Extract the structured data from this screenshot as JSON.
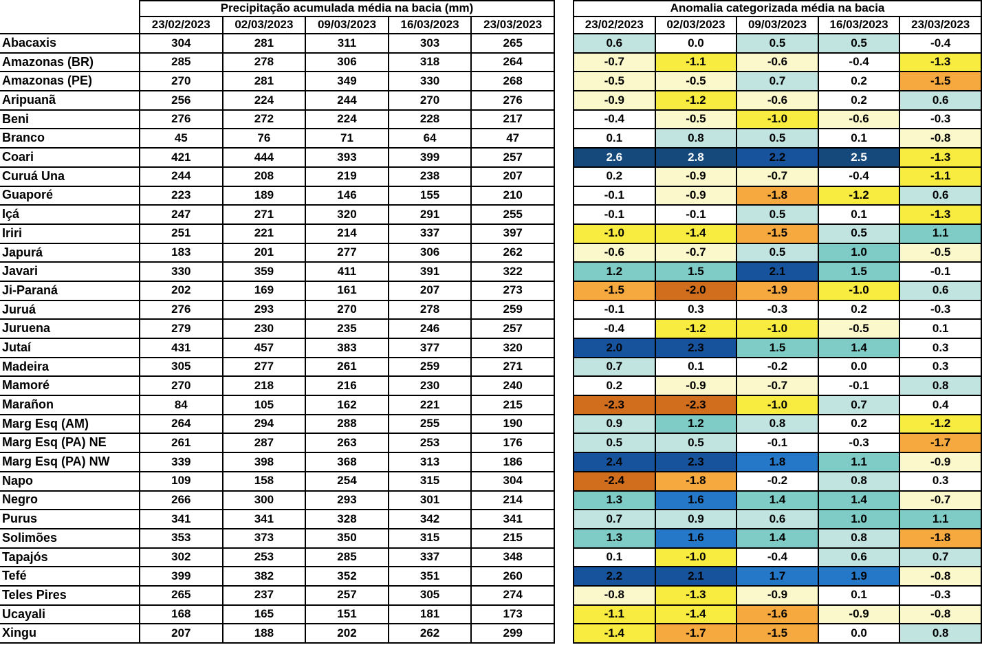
{
  "chart_data": [
    {
      "type": "table",
      "title": "Precipitação acumulada média na bacia (mm)",
      "columns": [
        "23/02/2023",
        "02/03/2023",
        "09/03/2023",
        "16/03/2023",
        "23/03/2023"
      ],
      "rows": [
        {
          "basin": "Abacaxis",
          "values": [
            304,
            281,
            311,
            303,
            265
          ]
        },
        {
          "basin": "Amazonas (BR)",
          "values": [
            285,
            278,
            306,
            318,
            264
          ]
        },
        {
          "basin": "Amazonas (PE)",
          "values": [
            270,
            281,
            349,
            330,
            268
          ]
        },
        {
          "basin": "Aripuanã",
          "values": [
            256,
            224,
            244,
            270,
            276
          ]
        },
        {
          "basin": "Beni",
          "values": [
            276,
            272,
            224,
            228,
            217
          ]
        },
        {
          "basin": "Branco",
          "values": [
            45,
            76,
            71,
            64,
            47
          ]
        },
        {
          "basin": "Coari",
          "values": [
            421,
            444,
            393,
            399,
            257
          ]
        },
        {
          "basin": "Curuá Una",
          "values": [
            244,
            208,
            219,
            238,
            207
          ]
        },
        {
          "basin": "Guaporé",
          "values": [
            223,
            189,
            146,
            155,
            210
          ]
        },
        {
          "basin": "Içá",
          "values": [
            247,
            271,
            320,
            291,
            255
          ]
        },
        {
          "basin": "Iriri",
          "values": [
            251,
            221,
            214,
            337,
            397
          ]
        },
        {
          "basin": "Japurá",
          "values": [
            183,
            201,
            277,
            306,
            262
          ]
        },
        {
          "basin": "Javari",
          "values": [
            330,
            359,
            411,
            391,
            322
          ]
        },
        {
          "basin": "Ji-Paraná",
          "values": [
            202,
            169,
            161,
            207,
            273
          ]
        },
        {
          "basin": "Juruá",
          "values": [
            276,
            293,
            270,
            278,
            259
          ]
        },
        {
          "basin": "Juruena",
          "values": [
            279,
            230,
            235,
            246,
            257
          ]
        },
        {
          "basin": "Jutaí",
          "values": [
            431,
            457,
            383,
            377,
            320
          ]
        },
        {
          "basin": "Madeira",
          "values": [
            305,
            277,
            261,
            259,
            271
          ]
        },
        {
          "basin": "Mamoré",
          "values": [
            270,
            218,
            216,
            230,
            240
          ]
        },
        {
          "basin": "Marañon",
          "values": [
            84,
            105,
            162,
            221,
            215
          ]
        },
        {
          "basin": "Marg Esq (AM)",
          "values": [
            264,
            294,
            288,
            255,
            190
          ]
        },
        {
          "basin": "Marg Esq (PA) NE",
          "values": [
            261,
            287,
            263,
            253,
            176
          ]
        },
        {
          "basin": "Marg Esq (PA) NW",
          "values": [
            339,
            398,
            368,
            313,
            186
          ]
        },
        {
          "basin": "Napo",
          "values": [
            109,
            158,
            254,
            315,
            304
          ]
        },
        {
          "basin": "Negro",
          "values": [
            266,
            300,
            293,
            301,
            214
          ]
        },
        {
          "basin": "Purus",
          "values": [
            341,
            341,
            328,
            342,
            341
          ]
        },
        {
          "basin": "Solimões",
          "values": [
            353,
            373,
            350,
            315,
            215
          ]
        },
        {
          "basin": "Tapajós",
          "values": [
            302,
            253,
            285,
            337,
            348
          ]
        },
        {
          "basin": "Tefé",
          "values": [
            399,
            382,
            352,
            351,
            260
          ]
        },
        {
          "basin": "Teles Pires",
          "values": [
            265,
            237,
            257,
            305,
            274
          ]
        },
        {
          "basin": "Ucayali",
          "values": [
            168,
            165,
            151,
            181,
            173
          ]
        },
        {
          "basin": "Xingu",
          "values": [
            207,
            188,
            202,
            262,
            299
          ]
        }
      ]
    },
    {
      "type": "heatmap",
      "title": "Anomalia categorizada média na bacia",
      "columns": [
        "23/02/2023",
        "02/03/2023",
        "09/03/2023",
        "16/03/2023",
        "23/03/2023"
      ],
      "rows": [
        {
          "basin": "Abacaxis",
          "values": [
            "0.6",
            "0.0",
            "0.5",
            "0.5",
            "-0.4"
          ],
          "categories": [
            "p1",
            "z",
            "p1",
            "p1",
            "z"
          ]
        },
        {
          "basin": "Amazonas (BR)",
          "values": [
            "-0.7",
            "-1.1",
            "-0.6",
            "-0.4",
            "-1.3"
          ],
          "categories": [
            "n1",
            "n2",
            "n1",
            "z",
            "n2"
          ]
        },
        {
          "basin": "Amazonas (PE)",
          "values": [
            "-0.5",
            "-0.5",
            "0.7",
            "0.2",
            "-1.5"
          ],
          "categories": [
            "n1",
            "n1",
            "p1",
            "z",
            "n3"
          ]
        },
        {
          "basin": "Aripuanã",
          "values": [
            "-0.9",
            "-1.2",
            "-0.6",
            "0.2",
            "0.6"
          ],
          "categories": [
            "n1",
            "n2",
            "n1",
            "z",
            "p1"
          ]
        },
        {
          "basin": "Beni",
          "values": [
            "-0.4",
            "-0.5",
            "-1.0",
            "-0.6",
            "-0.3"
          ],
          "categories": [
            "z",
            "n1",
            "n2",
            "n1",
            "z"
          ]
        },
        {
          "basin": "Branco",
          "values": [
            "0.1",
            "0.8",
            "0.5",
            "0.1",
            "-0.8"
          ],
          "categories": [
            "z",
            "p1",
            "p1",
            "z",
            "n1"
          ]
        },
        {
          "basin": "Coari",
          "values": [
            "2.6",
            "2.8",
            "2.2",
            "2.5",
            "-1.3"
          ],
          "categories": [
            "p5",
            "p5",
            "p4",
            "p5",
            "n2"
          ]
        },
        {
          "basin": "Curuá Una",
          "values": [
            "0.2",
            "-0.9",
            "-0.7",
            "-0.4",
            "-1.1"
          ],
          "categories": [
            "z",
            "n1",
            "n1",
            "z",
            "n2"
          ]
        },
        {
          "basin": "Guaporé",
          "values": [
            "-0.1",
            "-0.9",
            "-1.8",
            "-1.2",
            "0.6"
          ],
          "categories": [
            "z",
            "n1",
            "n3",
            "n2",
            "p1"
          ]
        },
        {
          "basin": "Içá",
          "values": [
            "-0.1",
            "-0.1",
            "0.5",
            "0.1",
            "-1.3"
          ],
          "categories": [
            "z",
            "z",
            "p1",
            "z",
            "n2"
          ]
        },
        {
          "basin": "Iriri",
          "values": [
            "-1.0",
            "-1.4",
            "-1.5",
            "0.5",
            "1.1"
          ],
          "categories": [
            "n2",
            "n2",
            "n3",
            "p1",
            "p2"
          ]
        },
        {
          "basin": "Japurá",
          "values": [
            "-0.6",
            "-0.7",
            "0.5",
            "1.0",
            "-0.5"
          ],
          "categories": [
            "n1",
            "n1",
            "p1",
            "p2",
            "n1"
          ]
        },
        {
          "basin": "Javari",
          "values": [
            "1.2",
            "1.5",
            "2.1",
            "1.5",
            "-0.1"
          ],
          "categories": [
            "p2",
            "p2",
            "p4",
            "p2",
            "z"
          ]
        },
        {
          "basin": "Ji-Paraná",
          "values": [
            "-1.5",
            "-2.0",
            "-1.9",
            "-1.0",
            "0.6"
          ],
          "categories": [
            "n3",
            "n4",
            "n3",
            "n2",
            "p1"
          ]
        },
        {
          "basin": "Juruá",
          "values": [
            "-0.1",
            "0.3",
            "-0.3",
            "0.2",
            "-0.3"
          ],
          "categories": [
            "z",
            "z",
            "z",
            "z",
            "z"
          ]
        },
        {
          "basin": "Juruena",
          "values": [
            "-0.4",
            "-1.2",
            "-1.0",
            "-0.5",
            "0.1"
          ],
          "categories": [
            "z",
            "n2",
            "n2",
            "n1",
            "z"
          ]
        },
        {
          "basin": "Jutaí",
          "values": [
            "2.0",
            "2.3",
            "1.5",
            "1.4",
            "0.3"
          ],
          "categories": [
            "p4",
            "p4",
            "p2",
            "p2",
            "z"
          ]
        },
        {
          "basin": "Madeira",
          "values": [
            "0.7",
            "0.1",
            "-0.2",
            "0.0",
            "0.3"
          ],
          "categories": [
            "p1",
            "z",
            "z",
            "z",
            "z"
          ]
        },
        {
          "basin": "Mamoré",
          "values": [
            "0.2",
            "-0.9",
            "-0.7",
            "-0.1",
            "0.8"
          ],
          "categories": [
            "z",
            "n1",
            "n1",
            "z",
            "p1"
          ]
        },
        {
          "basin": "Marañon",
          "values": [
            "-2.3",
            "-2.3",
            "-1.0",
            "0.7",
            "0.4"
          ],
          "categories": [
            "n4",
            "n4",
            "n2",
            "p1",
            "z"
          ]
        },
        {
          "basin": "Marg Esq (AM)",
          "values": [
            "0.9",
            "1.2",
            "0.8",
            "0.2",
            "-1.2"
          ],
          "categories": [
            "p1",
            "p2",
            "p1",
            "z",
            "n2"
          ]
        },
        {
          "basin": "Marg Esq (PA) NE",
          "values": [
            "0.5",
            "0.5",
            "-0.1",
            "-0.3",
            "-1.7"
          ],
          "categories": [
            "p1",
            "p1",
            "z",
            "z",
            "n3"
          ]
        },
        {
          "basin": "Marg Esq (PA) NW",
          "values": [
            "2.4",
            "2.3",
            "1.8",
            "1.1",
            "-0.9"
          ],
          "categories": [
            "p4",
            "p4",
            "p3",
            "p2",
            "n1"
          ]
        },
        {
          "basin": "Napo",
          "values": [
            "-2.4",
            "-1.8",
            "-0.2",
            "0.8",
            "0.3"
          ],
          "categories": [
            "n4",
            "n3",
            "z",
            "p1",
            "z"
          ]
        },
        {
          "basin": "Negro",
          "values": [
            "1.3",
            "1.6",
            "1.4",
            "1.4",
            "-0.7"
          ],
          "categories": [
            "p2",
            "p3",
            "p2",
            "p2",
            "n1"
          ]
        },
        {
          "basin": "Purus",
          "values": [
            "0.7",
            "0.9",
            "0.6",
            "1.0",
            "1.1"
          ],
          "categories": [
            "p1",
            "p1",
            "p1",
            "p2",
            "p2"
          ]
        },
        {
          "basin": "Solimões",
          "values": [
            "1.3",
            "1.6",
            "1.4",
            "0.8",
            "-1.8"
          ],
          "categories": [
            "p2",
            "p3",
            "p2",
            "p1",
            "n3"
          ]
        },
        {
          "basin": "Tapajós",
          "values": [
            "0.1",
            "-1.0",
            "-0.4",
            "0.6",
            "0.7"
          ],
          "categories": [
            "z",
            "n2",
            "z",
            "p1",
            "p1"
          ]
        },
        {
          "basin": "Tefé",
          "values": [
            "2.2",
            "2.1",
            "1.7",
            "1.9",
            "-0.8"
          ],
          "categories": [
            "p4",
            "p4",
            "p3",
            "p3",
            "n1"
          ]
        },
        {
          "basin": "Teles Pires",
          "values": [
            "-0.8",
            "-1.3",
            "-0.9",
            "0.1",
            "-0.3"
          ],
          "categories": [
            "n1",
            "n2",
            "n1",
            "z",
            "z"
          ]
        },
        {
          "basin": "Ucayali",
          "values": [
            "-1.1",
            "-1.4",
            "-1.6",
            "-0.9",
            "-0.8"
          ],
          "categories": [
            "n2",
            "n2",
            "n3",
            "n1",
            "n1"
          ]
        },
        {
          "basin": "Xingu",
          "values": [
            "-1.4",
            "-1.7",
            "-1.5",
            "0.0",
            "0.8"
          ],
          "categories": [
            "n2",
            "n3",
            "n3",
            "z",
            "p1"
          ]
        }
      ]
    }
  ],
  "colors": {
    "z": "#FFFFFF",
    "p1": "#C2E4E1",
    "p2": "#7FCCC7",
    "p3": "#2577C8",
    "p4": "#17539C",
    "p5": "#16497B",
    "n1": "#FBF9CB",
    "n2": "#F8EC40",
    "n3": "#F6A93F",
    "n4": "#D06E1E"
  },
  "white_text_categories": [
    "p5"
  ],
  "border_color": "#000000"
}
